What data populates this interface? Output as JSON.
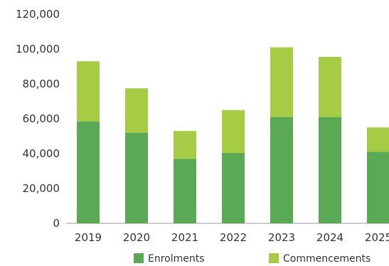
{
  "chart_data": {
    "type": "bar",
    "stacked": true,
    "categories": [
      "2019",
      "2020",
      "2021",
      "2022",
      "2023",
      "2024",
      "2025"
    ],
    "series": [
      {
        "name": "Enrolments",
        "color": "#5aaa55",
        "values": [
          58500,
          52000,
          37000,
          40500,
          61000,
          61000,
          41000
        ]
      },
      {
        "name": "Commencements",
        "color": "#a6cb44",
        "values": [
          34500,
          25500,
          16000,
          24500,
          40000,
          34500,
          14000
        ]
      }
    ],
    "y_ticks": [
      "0",
      "20,000",
      "40,000",
      "60,000",
      "80,000",
      "100,000",
      "120,000"
    ],
    "ylim": [
      0,
      120000
    ],
    "grid": false,
    "legend_position": "bottom"
  }
}
